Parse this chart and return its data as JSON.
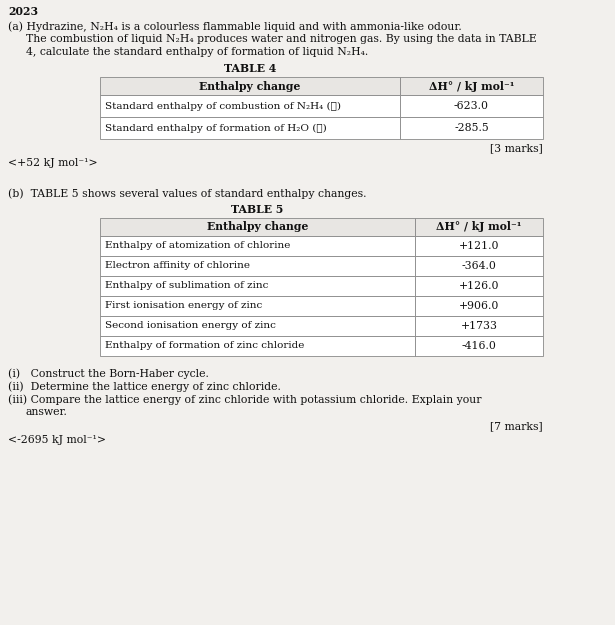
{
  "year": "2023",
  "part_a_line1": "(a) Hydrazine, N₂H₄ is a colourless flammable liquid and with ammonia-like odour.",
  "part_a_line2": "The combustion of liquid N₂H₄ produces water and nitrogen gas. By using the data in TABLE",
  "part_a_line3": "4, calculate the standard enthalpy of formation of liquid N₂H₄.",
  "table4_title": "TABLE 4",
  "table4_col1_header": "Enthalpy change",
  "table4_col2_header": "ΔH° / kJ mol⁻¹",
  "table4_rows": [
    [
      "Standard enthalpy of combustion of N₂H₄ (ℓ)",
      "-623.0"
    ],
    [
      "Standard enthalpy of formation of H₂O (ℓ)",
      "-285.5"
    ]
  ],
  "marks_a": "[3 marks]",
  "answer_a": "<+52 kJ mol⁻¹>",
  "part_b_text": "(b)  TABLE 5 shows several values of standard enthalpy changes.",
  "table5_title": "TABLE 5",
  "table5_col1_header": "Enthalpy change",
  "table5_col2_header": "ΔH° / kJ mol⁻¹",
  "table5_rows": [
    [
      "Enthalpy of atomization of chlorine",
      "+121.0"
    ],
    [
      "Electron affinity of chlorine",
      "-364.0"
    ],
    [
      "Enthalpy of sublimation of zinc",
      "+126.0"
    ],
    [
      "First ionisation energy of zinc",
      "+906.0"
    ],
    [
      "Second ionisation energy of zinc",
      "+1733"
    ],
    [
      "Enthalpy of formation of zinc chloride",
      "-416.0"
    ]
  ],
  "subpoint_i": "(i)   Construct the Born-Haber cycle.",
  "subpoint_ii": "(ii)  Determine the lattice energy of zinc chloride.",
  "subpoint_iii_a": "(iii) Compare the lattice energy of zinc chloride with potassium chloride. Explain your",
  "subpoint_iii_b": "       answer.",
  "marks_b": "[7 marks]",
  "answer_b": "<-2695 kJ mol⁻¹>",
  "bg_color": "#f2f0ed",
  "table_bg": "#ffffff",
  "table_header_bg": "#e8e6e3",
  "border_color": "#888888",
  "text_color": "#111111"
}
